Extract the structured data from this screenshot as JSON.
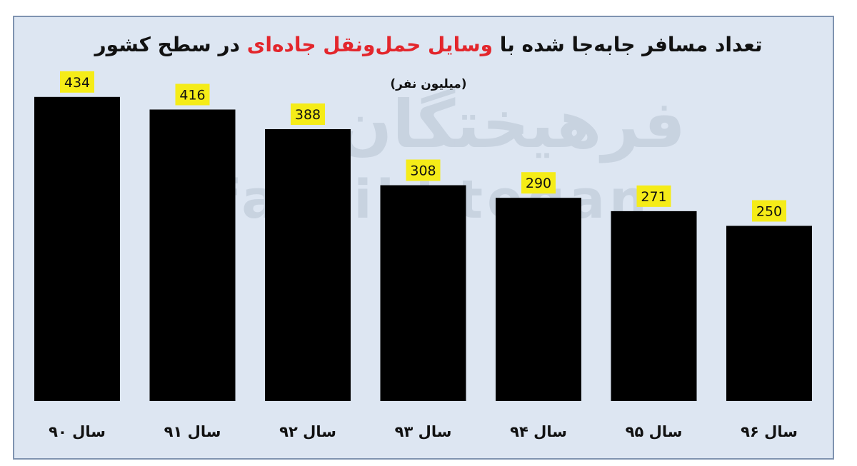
{
  "title": {
    "part1": "تعداد مسافر جابه‌جا شده با",
    "highlight": "وسایل حمل‌ونقل جاده‌ای",
    "part2": "در سطح کشور"
  },
  "subtitle": "(میلیون نفر)",
  "watermark": {
    "line1": "فرهیختگان",
    "line2": "farhikhtegan"
  },
  "colors": {
    "bar": "#000000",
    "label_highlight": "#f5ec18",
    "title_highlight": "#e3262c",
    "background": "#dde6f2"
  },
  "chart_data": {
    "type": "bar",
    "title": "تعداد مسافر جابه‌جا شده با وسایل حمل‌ونقل جاده‌ای در سطح کشور",
    "subtitle": "(میلیون نفر)",
    "categories": [
      "سال ۹۰",
      "سال ۹۱",
      "سال ۹۲",
      "سال ۹۳",
      "سال ۹۴",
      "سال ۹۵",
      "سال ۹۶"
    ],
    "values": [
      434,
      416,
      388,
      308,
      290,
      271,
      250
    ],
    "data_labels": [
      "434",
      "416",
      "388",
      "308",
      "290",
      "271",
      "250"
    ],
    "grid": false,
    "legend": "none"
  }
}
